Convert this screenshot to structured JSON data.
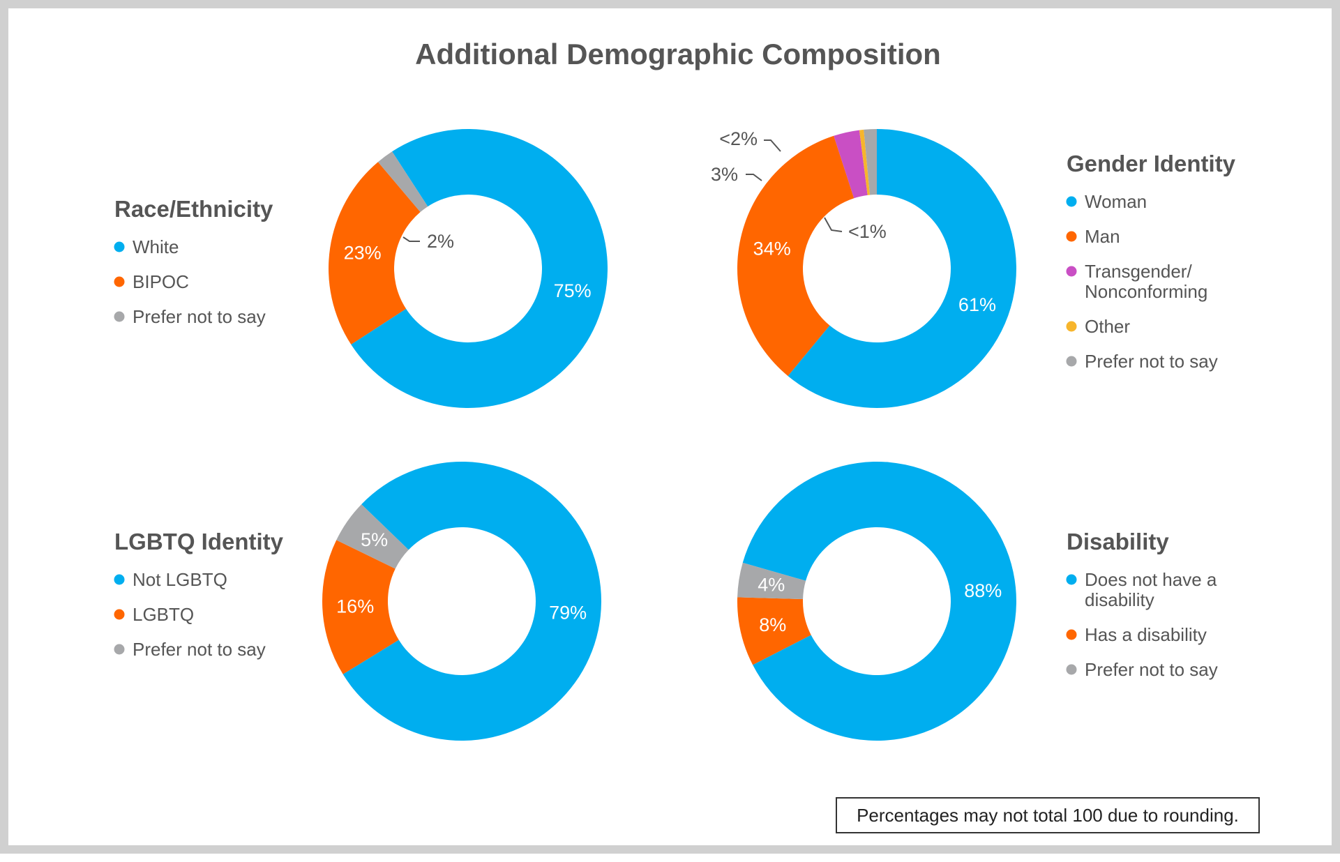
{
  "title": "Additional Demographic Composition",
  "note": "Percentages may not total 100 due to rounding.",
  "colors": {
    "blue": "#00AEEF",
    "orange": "#FF6600",
    "gray": "#A7A8AA",
    "magenta": "#C94FC4",
    "yellow": "#F7B52C",
    "text": "#555555"
  },
  "chart_data": [
    {
      "type": "pie",
      "style": "donut",
      "title": "Race/Ethnicity",
      "legend_position": "left",
      "slices": [
        {
          "name": "White",
          "value": 75,
          "label": "75%",
          "color": "#00AEEF"
        },
        {
          "name": "BIPOC",
          "value": 23,
          "label": "23%",
          "color": "#FF6600"
        },
        {
          "name": "Prefer not to say",
          "value": 2,
          "label": "2%",
          "color": "#A7A8AA"
        }
      ]
    },
    {
      "type": "pie",
      "style": "donut",
      "title": "Gender Identity",
      "legend_position": "right",
      "slices": [
        {
          "name": "Woman",
          "value": 61,
          "label": "61%",
          "color": "#00AEEF"
        },
        {
          "name": "Man",
          "value": 34,
          "label": "34%",
          "color": "#FF6600"
        },
        {
          "name": "Transgender/ Nonconforming",
          "legend_lines": [
            "Transgender/",
            "Nonconforming"
          ],
          "value": 3,
          "label": "3%",
          "color": "#C94FC4"
        },
        {
          "name": "Other",
          "value": 0.5,
          "label": "<1%",
          "color": "#F7B52C"
        },
        {
          "name": "Prefer not to say",
          "value": 1.5,
          "label": "<2%",
          "color": "#A7A8AA"
        }
      ]
    },
    {
      "type": "pie",
      "style": "donut",
      "title": "LGBTQ Identity",
      "legend_position": "left",
      "slices": [
        {
          "name": "Not LGBTQ",
          "value": 79,
          "label": "79%",
          "color": "#00AEEF"
        },
        {
          "name": "LGBTQ",
          "value": 16,
          "label": "16%",
          "color": "#FF6600"
        },
        {
          "name": "Prefer not to say",
          "value": 5,
          "label": "5%",
          "color": "#A7A8AA"
        }
      ]
    },
    {
      "type": "pie",
      "style": "donut",
      "title": "Disability",
      "legend_position": "right",
      "slices": [
        {
          "name": "Does not have a disability",
          "legend_lines": [
            "Does not have a",
            "disability"
          ],
          "value": 88,
          "label": "88%",
          "color": "#00AEEF"
        },
        {
          "name": "Has a disability",
          "value": 8,
          "label": "8%",
          "color": "#FF6600"
        },
        {
          "name": "Prefer not to say",
          "value": 4,
          "label": "4%",
          "color": "#A7A8AA"
        }
      ]
    }
  ]
}
